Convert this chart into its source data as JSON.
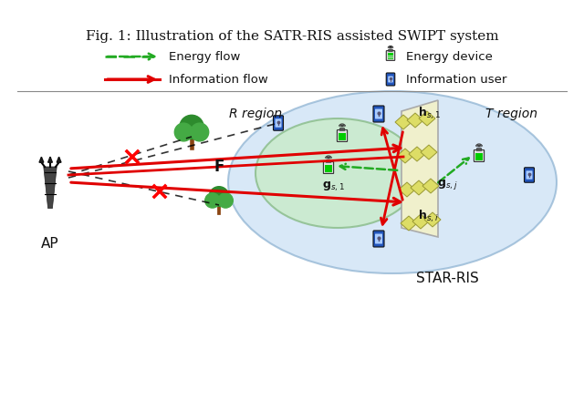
{
  "title": "STAR-RIS",
  "ap_label": "AP",
  "r_region_label": "R region",
  "t_region_label": "T region",
  "fig_caption": "Fig. 1: Illustration of the SATR-RIS assisted SWIPT system",
  "legend_info_flow": "Information flow",
  "legend_energy_flow": "Energy flow",
  "legend_info_user": "Information user",
  "legend_energy_device": "Energy device",
  "bg_color": "#ffffff",
  "info_flow_color": "#e00000",
  "energy_flow_color": "#22aa22",
  "label_F": "F",
  "label_hs1": "h_{s,1}",
  "label_hsi": "h_{s,i}",
  "label_gs1": "g_{s,1}",
  "label_gsj": "g_{s,j}"
}
